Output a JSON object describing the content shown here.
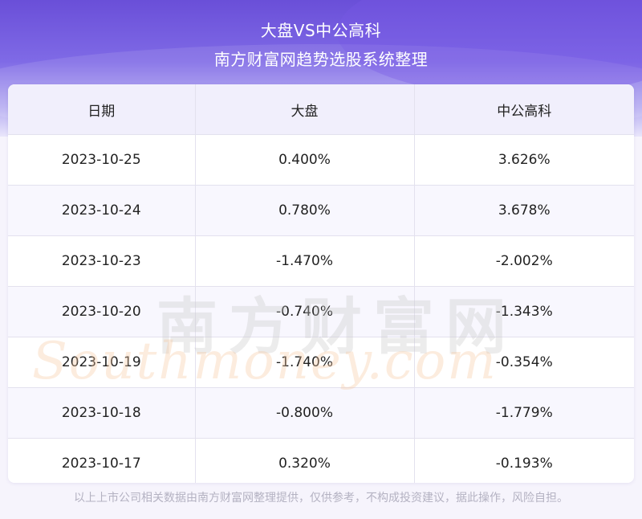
{
  "header": {
    "title": "大盘VS中公高科",
    "subtitle": "南方财富网趋势选股系统整理"
  },
  "table": {
    "columns": [
      "日期",
      "大盘",
      "中公高科"
    ],
    "rows": [
      [
        "2023-10-25",
        "0.400%",
        "3.626%"
      ],
      [
        "2023-10-24",
        "0.780%",
        "3.678%"
      ],
      [
        "2023-10-23",
        "-1.470%",
        "-2.002%"
      ],
      [
        "2023-10-20",
        "-0.740%",
        "-1.343%"
      ],
      [
        "2023-10-19",
        "-1.740%",
        "-0.354%"
      ],
      [
        "2023-10-18",
        "-0.800%",
        "-1.779%"
      ],
      [
        "2023-10-17",
        "0.320%",
        "-0.193%"
      ]
    ]
  },
  "watermark": {
    "cn": "南方财富网",
    "en": "Southmoney.com"
  },
  "footer": {
    "disclaimer": "以上上市公司相关数据由南方财富网整理提供，仅供参考，不构成投资建议，据此操作，风险自担。"
  },
  "colors": {
    "header_top": "#6a4fd8",
    "header_bottom": "#e9e6fb",
    "table_header_bg": "#f1effc",
    "text": "#222222",
    "footer_text": "#b4b2c2"
  }
}
